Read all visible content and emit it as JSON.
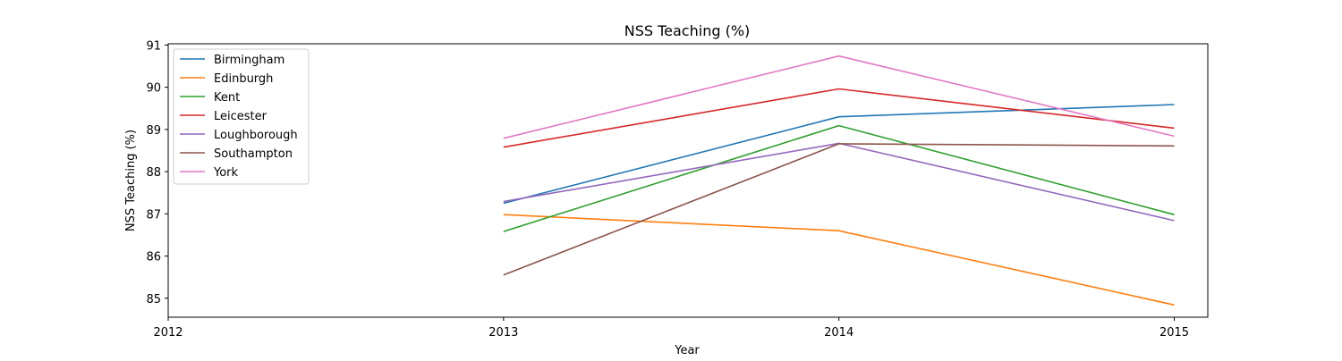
{
  "chart_data": {
    "type": "line",
    "title": "NSS Teaching (%)",
    "xlabel": "Year",
    "ylabel": "NSS Teaching (%)",
    "x_ticks": [
      "2012",
      "2013",
      "2014",
      "2015"
    ],
    "y_ticks": [
      "85",
      "86",
      "87",
      "88",
      "89",
      "90",
      "91"
    ],
    "xlim": [
      2012,
      2015.1
    ],
    "ylim": [
      84.55,
      91.03
    ],
    "grid": false,
    "legend_position": "top-left",
    "series": [
      {
        "name": "Birmingham",
        "color": "#1f77b4",
        "points": [
          [
            2013,
            87.25
          ],
          [
            2014,
            89.3
          ],
          [
            2015,
            89.59
          ]
        ]
      },
      {
        "name": "Edinburgh",
        "color": "#ff7f0e",
        "points": [
          [
            2013,
            86.98
          ],
          [
            2014,
            86.6
          ],
          [
            2015,
            84.84
          ]
        ]
      },
      {
        "name": "Kent",
        "color": "#2ca02c",
        "points": [
          [
            2013,
            86.58
          ],
          [
            2014,
            89.09
          ],
          [
            2015,
            86.98
          ]
        ]
      },
      {
        "name": "Leicester",
        "color": "#d62728",
        "points": [
          [
            2013,
            88.58
          ],
          [
            2014,
            89.96
          ],
          [
            2015,
            89.03
          ]
        ]
      },
      {
        "name": "Loughborough",
        "color": "#9467bd",
        "points": [
          [
            2013,
            87.29
          ],
          [
            2014,
            88.67
          ],
          [
            2015,
            86.84
          ]
        ]
      },
      {
        "name": "Southampton",
        "color": "#8c564b",
        "points": [
          [
            2013,
            85.55
          ],
          [
            2014,
            88.66
          ],
          [
            2015,
            88.61
          ]
        ]
      },
      {
        "name": "York",
        "color": "#e377c2",
        "points": [
          [
            2013,
            88.79
          ],
          [
            2014,
            90.74
          ],
          [
            2015,
            88.84
          ]
        ]
      }
    ]
  }
}
